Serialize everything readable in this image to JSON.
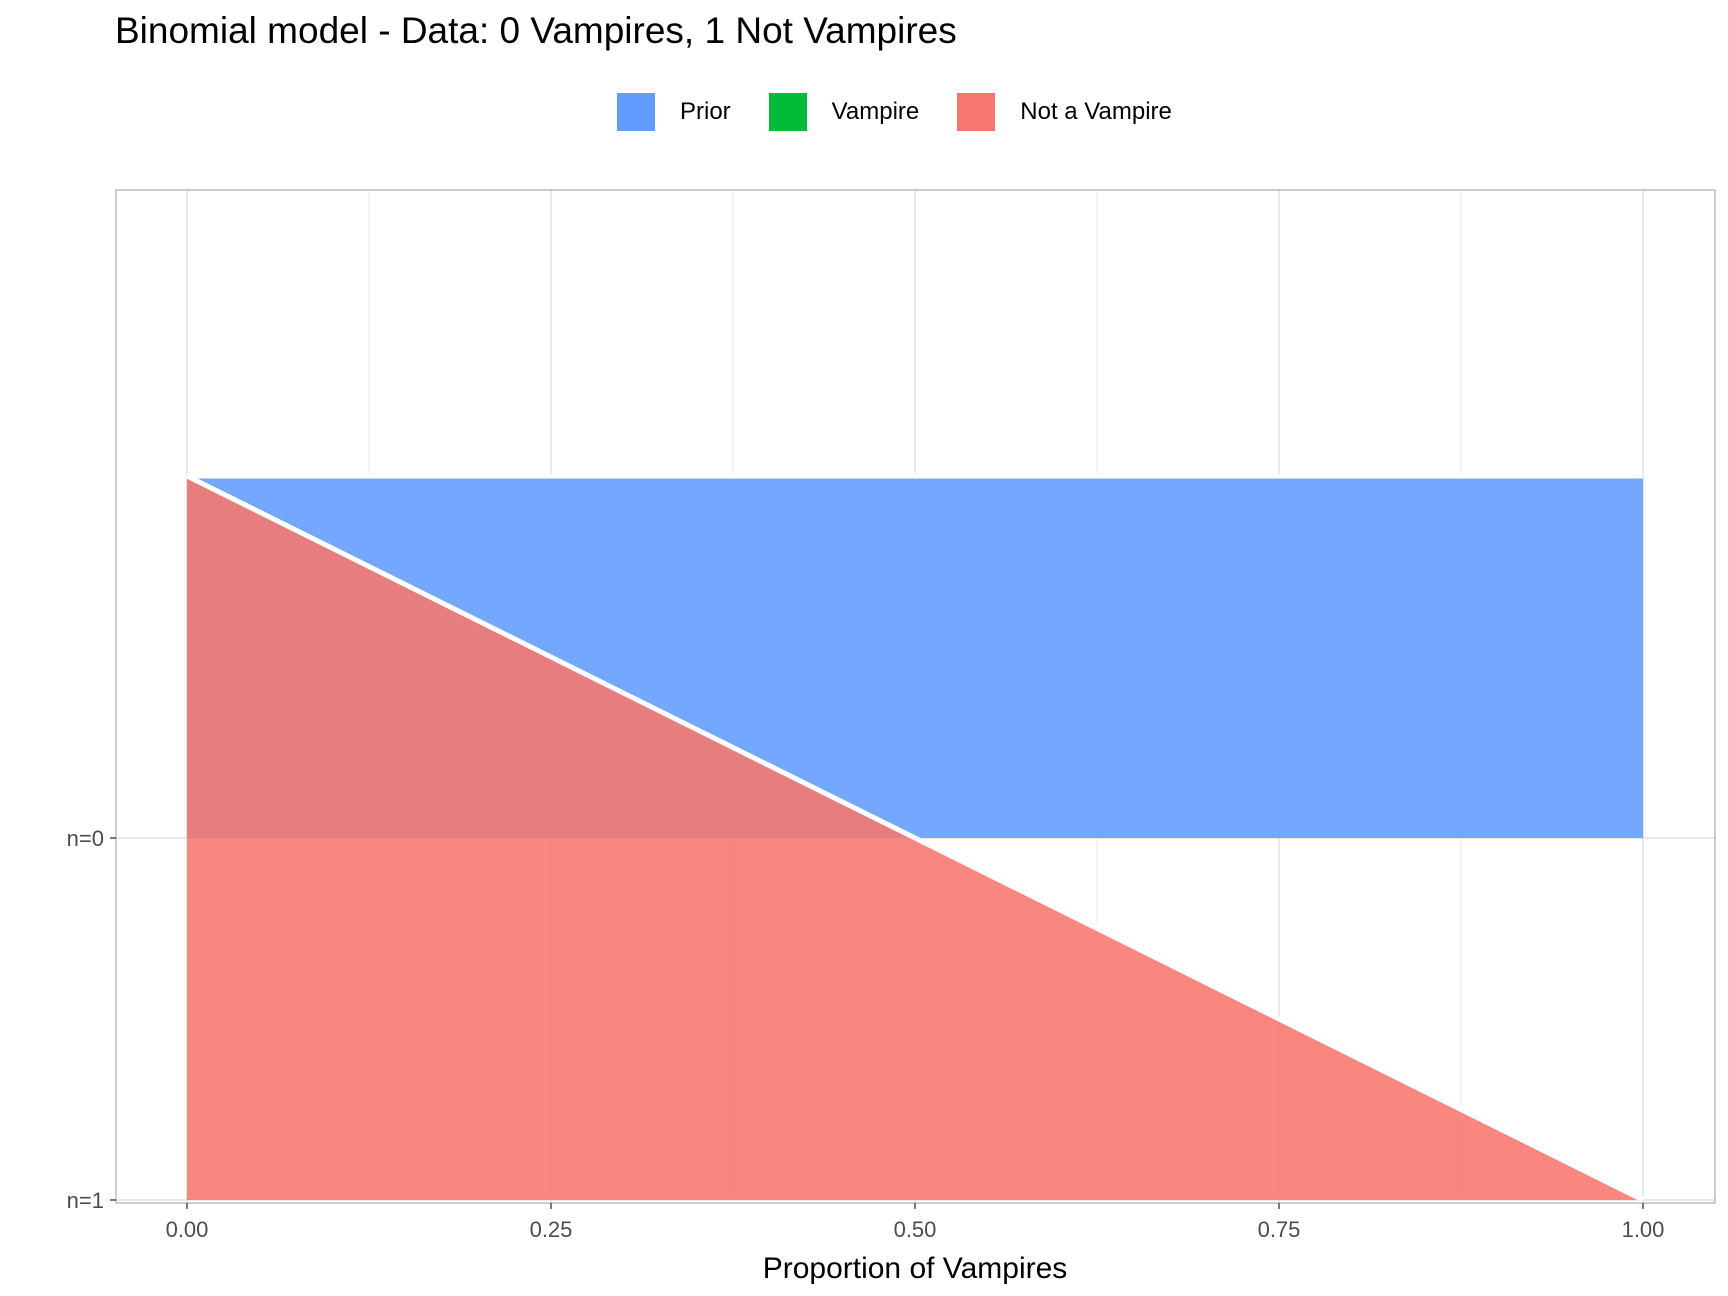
{
  "chart_data": {
    "type": "area",
    "title": "Binomial model - Data: 0 Vampires, 1 Not Vampires",
    "xlabel": "Proportion of Vampires",
    "ylabel": "",
    "xlim": [
      0,
      1
    ],
    "x_ticks": [
      "0.00",
      "0.25",
      "0.50",
      "0.75",
      "1.00"
    ],
    "y_rows": [
      "n=0",
      "n=1"
    ],
    "grid": true,
    "legend_position": "top",
    "legend": [
      {
        "name": "Prior",
        "color": "#619CFF"
      },
      {
        "name": "Vampire",
        "color": "#00BA38"
      },
      {
        "name": "Not a Vampire",
        "color": "#F8766D"
      }
    ],
    "series": [
      {
        "name": "Prior",
        "row": "n=0",
        "x": [
          0,
          1
        ],
        "density": [
          1,
          1
        ],
        "color": "#619CFF"
      },
      {
        "name": "Not a Vampire",
        "row": "n=1",
        "x": [
          0,
          1
        ],
        "density": [
          2,
          0
        ],
        "color": "#F8766D"
      }
    ]
  }
}
